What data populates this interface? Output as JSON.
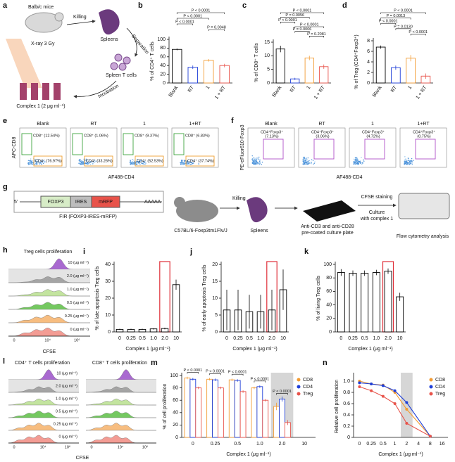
{
  "chart_data": [
    {
      "type": "bar",
      "label": "b",
      "ylabel": "% of CD4⁺ T cells",
      "categories": [
        "Blank",
        "RT",
        "1",
        "1 + RT"
      ],
      "values": [
        77,
        36,
        52,
        40
      ],
      "errors": [
        2,
        4,
        3,
        4
      ],
      "colors": [
        "#000000",
        "#1f3fd8",
        "#f39c33",
        "#e8534a"
      ],
      "ylim": [
        0,
        100
      ],
      "yticks": [
        0,
        20,
        40,
        60,
        80,
        100
      ],
      "comparisons": [
        {
          "text": "P < 0.0001",
          "between": [
            "Blank",
            "1 + RT"
          ]
        },
        {
          "text": "P < 0.0001",
          "between": [
            "Blank",
            "1"
          ]
        },
        {
          "text": "P < 0.0001",
          "between": [
            "Blank",
            "RT"
          ]
        },
        {
          "text": "P = 0.0048",
          "between": [
            "1",
            "1 + RT"
          ]
        }
      ]
    },
    {
      "type": "bar",
      "label": "c",
      "ylabel": "% of CD8⁺ T cells",
      "categories": [
        "Blank",
        "RT",
        "1",
        "1 + RT"
      ],
      "values": [
        12.5,
        1.5,
        9.2,
        6
      ],
      "errors": [
        1.2,
        0.4,
        0.8,
        0.8
      ],
      "colors": [
        "#000000",
        "#1f3fd8",
        "#f39c33",
        "#e8534a"
      ],
      "ylim": [
        0,
        15
      ],
      "yticks": [
        0,
        5,
        10,
        15
      ],
      "comparisons": [
        {
          "text": "P < 0.0001",
          "between": [
            "Blank",
            "1 + RT"
          ]
        },
        {
          "text": "P = 0.0056",
          "between": [
            "Blank",
            "1"
          ]
        },
        {
          "text": "P < 0.0001",
          "between": [
            "Blank",
            "RT"
          ]
        },
        {
          "text": "P < 0.0001",
          "between": [
            "RT",
            "1 + RT"
          ]
        },
        {
          "text": "P = 0.0006",
          "between": [
            "RT",
            "1"
          ]
        },
        {
          "text": "P = 0.2081",
          "between": [
            "1",
            "1 + RT"
          ]
        }
      ]
    },
    {
      "type": "bar",
      "label": "d",
      "ylabel": "% of Treg (CD4⁺Foxp3⁺)",
      "categories": [
        "Blank",
        "RT",
        "1",
        "1 + RT"
      ],
      "values": [
        6.8,
        2.9,
        4.7,
        1.3
      ],
      "errors": [
        0.3,
        0.4,
        0.6,
        0.5
      ],
      "colors": [
        "#000000",
        "#1f3fd8",
        "#f39c33",
        "#e8534a"
      ],
      "ylim": [
        0,
        8
      ],
      "yticks": [
        0,
        2,
        4,
        6,
        8
      ],
      "comparisons": [
        {
          "text": "P < 0.0001",
          "between": [
            "Blank",
            "1 + RT"
          ]
        },
        {
          "text": "P = 0.0013",
          "between": [
            "Blank",
            "1"
          ]
        },
        {
          "text": "P < 0.0001",
          "between": [
            "Blank",
            "RT"
          ]
        },
        {
          "text": "P = 0.0130",
          "between": [
            "RT",
            "1"
          ]
        },
        {
          "text": "P < 0.0001",
          "between": [
            "1",
            "1 + RT"
          ]
        }
      ]
    },
    {
      "type": "bar",
      "label": "i",
      "ylabel": "% of late apoptosis Treg cells",
      "xlabel": "Complex 1 (μg ml⁻¹)",
      "categories": [
        "0",
        "0.25",
        "0.5",
        "1.0",
        "2.0",
        "10"
      ],
      "values": [
        1.5,
        1.5,
        1.5,
        1.8,
        2,
        28
      ],
      "errors": [
        0.4,
        0.4,
        0.4,
        0.4,
        0.5,
        3
      ],
      "colors": [
        "#000000",
        "#000000",
        "#000000",
        "#000000",
        "#000000",
        "#000000"
      ],
      "ylim": [
        0,
        40
      ],
      "yticks": [
        0,
        10,
        20,
        30,
        40
      ],
      "highlight": {
        "category": "2.0",
        "color": "#e0303a",
        "style": "outline"
      }
    },
    {
      "type": "bar",
      "label": "j",
      "ylabel": "% of early apoptosis Treg cells",
      "xlabel": "Complex 1 (μg ml⁻¹)",
      "categories": [
        "0",
        "0.25",
        "0.5",
        "1.0",
        "2.0",
        "10"
      ],
      "values": [
        6.5,
        6.5,
        6,
        6,
        6.5,
        12.5
      ],
      "errors": [
        6,
        6,
        5,
        5,
        6,
        6
      ],
      "colors": [
        "#000000",
        "#000000",
        "#000000",
        "#000000",
        "#000000",
        "#000000"
      ],
      "ylim": [
        0,
        20
      ],
      "yticks": [
        0,
        5,
        10,
        15,
        20
      ],
      "highlight": {
        "category": "2.0",
        "color": "#e0303a",
        "style": "outline"
      }
    },
    {
      "type": "bar",
      "label": "k",
      "ylabel": "% of living Treg cells",
      "xlabel": "Complex 1 (μg ml⁻¹)",
      "categories": [
        "0",
        "0.25",
        "0.5",
        "1.0",
        "2.0",
        "10"
      ],
      "values": [
        88,
        87,
        87,
        88,
        90,
        52
      ],
      "errors": [
        5,
        4,
        4,
        4,
        4,
        6
      ],
      "colors": [
        "#000000",
        "#000000",
        "#000000",
        "#000000",
        "#000000",
        "#000000"
      ],
      "ylim": [
        0,
        100
      ],
      "yticks": [
        0,
        20,
        40,
        60,
        80,
        100
      ],
      "highlight": {
        "category": "2.0",
        "color": "#e0303a",
        "style": "outline"
      }
    },
    {
      "type": "bar",
      "label": "m",
      "ylabel": "% of cell proliferation",
      "xlabel": "Complex 1 (μg ml⁻¹)",
      "categories": [
        "0",
        "0.25",
        "0.5",
        "1.0",
        "2.0",
        "10"
      ],
      "ylim": [
        0,
        100
      ],
      "yticks": [
        0,
        20,
        40,
        60,
        80,
        100
      ],
      "highlight": {
        "category": "2.0",
        "color": "#d6d6d6",
        "style": "fill"
      },
      "series": [
        {
          "name": "CD8",
          "color": "#f39c33",
          "values": [
            96,
            94,
            93,
            80,
            50,
            0
          ],
          "errors": [
            2,
            2,
            2,
            2,
            6,
            0
          ]
        },
        {
          "name": "CD4",
          "color": "#1f3fd8",
          "values": [
            94,
            93,
            92,
            82,
            62,
            0
          ],
          "errors": [
            2,
            2,
            2,
            2,
            4,
            0
          ]
        },
        {
          "name": "Treg",
          "color": "#e8534a",
          "values": [
            80,
            80,
            74,
            60,
            24,
            0
          ],
          "errors": [
            2,
            2,
            2,
            2,
            4,
            0
          ]
        }
      ],
      "comparisons": [
        {
          "text": "P < 0.0001",
          "category": "0"
        },
        {
          "text": "P < 0.0001",
          "category": "0.25"
        },
        {
          "text": "P < 0.0001",
          "category": "0.5"
        },
        {
          "text": "P < 0.0001",
          "category": "1.0"
        },
        {
          "text": "P < 0.0001",
          "category": "2.0"
        }
      ]
    },
    {
      "type": "line",
      "label": "n",
      "ylabel": "Relative cell proliferation",
      "xlabel": "Complex 1 (μg ml⁻¹)",
      "categories": [
        "0",
        "0.25",
        "0.5",
        "1",
        "2",
        "4",
        "8",
        "16"
      ],
      "ylim": [
        0,
        1.1
      ],
      "yticks": [
        0,
        0.2,
        0.4,
        0.6,
        0.8,
        {
          "value": 1,
          "label": "1.0"
        }
      ],
      "highlight": {
        "category": "2",
        "color": "#d6d6d6",
        "style": "fill"
      },
      "series": [
        {
          "name": "CD8",
          "color": "#f39c33",
          "values": [
            1,
            0.95,
            0.93,
            0.8,
            0.5,
            null,
            0.02,
            null
          ]
        },
        {
          "name": "CD4",
          "color": "#1f3fd8",
          "values": [
            0.97,
            0.95,
            0.92,
            0.83,
            0.62,
            null,
            0.02,
            null
          ]
        },
        {
          "name": "Treg",
          "color": "#e8534a",
          "values": [
            0.9,
            0.83,
            0.73,
            0.6,
            0.25,
            null,
            0.02,
            null
          ]
        }
      ]
    }
  ],
  "diagram_a": {
    "label": "a",
    "mice": "Balb/c mice",
    "killing": "Killing",
    "spleens": "Spleens",
    "separation": "Separation",
    "xray": "X-ray 3 Gy",
    "tcells": "Spleen T cells",
    "incubation": "Incubation",
    "complex": "Complex 1 (2 μg ml⁻¹)"
  },
  "flow_e": {
    "label": "e",
    "ylabel": "APC-CD8",
    "xlabel": "AF488-CD4",
    "plots": [
      {
        "title": "Blank",
        "gates": [
          "CD8⁺ (12.54%)",
          "CD4⁺ (76.97%)"
        ]
      },
      {
        "title": "RT",
        "gates": [
          "CD8⁺ (1.06%)",
          "CD4⁺ (33.26%)"
        ]
      },
      {
        "title": "1",
        "gates": [
          "CD8⁺ (9.37%)",
          "CD4⁺ (52.53%)"
        ]
      },
      {
        "title": "1+RT",
        "gates": [
          "CD8⁺ (6.83%)",
          "CD4⁺ (37.74%)"
        ]
      }
    ]
  },
  "flow_f": {
    "label": "f",
    "ylabel": "PE-eFluor610-Foxp3",
    "xlabel": "AF488-CD4",
    "plots": [
      {
        "title": "Blank",
        "gates": [
          "CD4⁺Foxp3⁺",
          "(7.13%)"
        ]
      },
      {
        "title": "RT",
        "gates": [
          "CD4⁺Foxp3⁺",
          "(3.06%)"
        ]
      },
      {
        "title": "1",
        "gates": [
          "CD4⁺Foxp3⁺",
          "(4.72%)"
        ]
      },
      {
        "title": "1+RT",
        "gates": [
          "CD4⁺Foxp3⁺",
          "(0.75%)"
        ]
      }
    ]
  },
  "diagram_g": {
    "label": "g",
    "five_prime": "5'",
    "genes": [
      "FOXP3",
      "IRES",
      "mRFP"
    ],
    "poly_a": "AAAAA",
    "construct": "FIR (FOXP3-IRES-mRFP)",
    "killing": "Killing",
    "strain": "C57BL/6-Foxp3tm1Flv/J",
    "spleens": "Spleens",
    "plate": [
      "Anti-CD3 and anti-CD28",
      "pre-coated culture plate"
    ],
    "staining": "CFSE staining",
    "culture": [
      "Culture",
      "with complex 1"
    ],
    "analysis": "Flow cytometry analysis"
  },
  "histogram_h": {
    "label": "h",
    "title": "Treg cells proliferation",
    "rows": [
      "10 (μg ml⁻¹)",
      "2.0 (μg ml⁻¹)",
      "1.0 (μg ml⁻¹)",
      "0.5 (μg ml⁻¹)",
      "0.25 (μg ml⁻¹)",
      "0 (μg ml⁻¹)"
    ],
    "colors": [
      "#9b4fc8",
      "#9a9a9a",
      "#b9e08f",
      "#5cbf45",
      "#f6b26b",
      "#f28b82"
    ],
    "xticks": [
      "0",
      "10⁴",
      "10⁶"
    ],
    "xlabel": "CFSE"
  },
  "histogram_l": {
    "label": "l",
    "titles": [
      "CD4⁺ T cells proliferation",
      "CD8⁺ T cells proliferation"
    ],
    "rows": [
      "10 (μg ml⁻¹)",
      "2.0 (μg ml⁻¹)",
      "1.0 (μg ml⁻¹)",
      "0.5 (μg ml⁻¹)",
      "0.25 (μg ml⁻¹)",
      "0 (μg ml⁻¹)"
    ],
    "colors": [
      "#9b4fc8",
      "#9a9a9a",
      "#b9e08f",
      "#5cbf45",
      "#f6b26b",
      "#f28b82"
    ],
    "xticks": [
      "0",
      "10⁴",
      "10⁶"
    ],
    "xlabel": "CFSE"
  }
}
